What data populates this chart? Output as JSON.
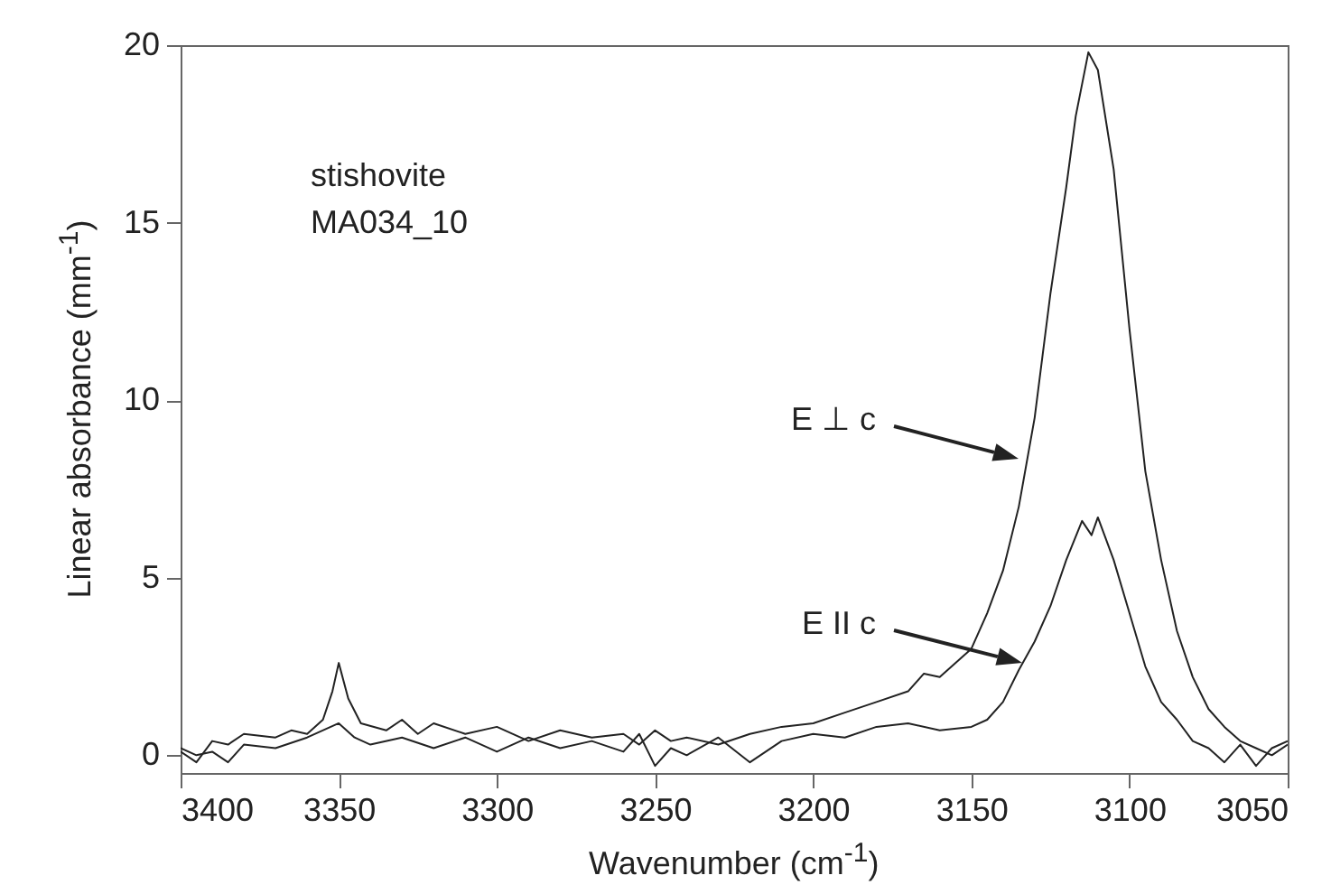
{
  "chart_data": {
    "type": "line",
    "xlabel": "Wavenumber (cm$^{-1}$)",
    "ylabel": "Linear absorbance (mm$^{-1}$)",
    "xlim": [
      3400,
      3050
    ],
    "xticks": [
      3400,
      3350,
      3300,
      3250,
      3200,
      3150,
      3100,
      3050
    ],
    "ylim": [
      -0.5,
      20
    ],
    "yticks": [
      0,
      5,
      10,
      15,
      20
    ],
    "grid": false,
    "legend": false,
    "annotations": [
      "stishovite",
      "MA034_10",
      "E ⊥ c",
      "E II c"
    ],
    "series": [
      {
        "color": "#222222",
        "x": [
          3400,
          3395,
          3390,
          3385,
          3380,
          3370,
          3365,
          3360,
          3355,
          3352,
          3350,
          3347,
          3343,
          3335,
          3330,
          3325,
          3320,
          3310,
          3300,
          3290,
          3280,
          3270,
          3260,
          3255,
          3250,
          3245,
          3240,
          3230,
          3220,
          3210,
          3200,
          3190,
          3180,
          3170,
          3165,
          3160,
          3150,
          3145,
          3140,
          3135,
          3130,
          3125,
          3120,
          3117,
          3113,
          3110,
          3105,
          3100,
          3095,
          3090,
          3085,
          3080,
          3075,
          3070,
          3065,
          3060,
          3055,
          3050
        ],
        "values": [
          0.1,
          -0.2,
          0.4,
          0.3,
          0.6,
          0.5,
          0.7,
          0.6,
          1.0,
          1.8,
          2.6,
          1.6,
          0.9,
          0.7,
          1.0,
          0.6,
          0.9,
          0.6,
          0.8,
          0.4,
          0.7,
          0.5,
          0.6,
          0.3,
          0.7,
          0.4,
          0.5,
          0.3,
          0.6,
          0.8,
          0.9,
          1.2,
          1.5,
          1.8,
          2.3,
          2.2,
          3.0,
          4.0,
          5.2,
          7.0,
          9.5,
          13.0,
          16.0,
          18.0,
          19.8,
          19.3,
          16.5,
          12.0,
          8.0,
          5.5,
          3.5,
          2.2,
          1.3,
          0.8,
          0.4,
          0.2,
          0.0,
          0.3
        ]
      },
      {
        "color": "#222222",
        "x": [
          3400,
          3395,
          3390,
          3385,
          3380,
          3370,
          3360,
          3350,
          3345,
          3340,
          3330,
          3320,
          3310,
          3300,
          3290,
          3280,
          3270,
          3260,
          3255,
          3250,
          3245,
          3240,
          3230,
          3220,
          3210,
          3200,
          3190,
          3180,
          3170,
          3160,
          3150,
          3145,
          3140,
          3135,
          3130,
          3125,
          3120,
          3115,
          3112,
          3110,
          3105,
          3100,
          3095,
          3090,
          3085,
          3080,
          3075,
          3070,
          3065,
          3060,
          3055,
          3050
        ],
        "values": [
          0.2,
          0.0,
          0.1,
          -0.2,
          0.3,
          0.2,
          0.5,
          0.9,
          0.5,
          0.3,
          0.5,
          0.2,
          0.5,
          0.1,
          0.5,
          0.2,
          0.4,
          0.1,
          0.6,
          -0.3,
          0.2,
          0.0,
          0.5,
          -0.2,
          0.4,
          0.6,
          0.5,
          0.8,
          0.9,
          0.7,
          0.8,
          1.0,
          1.5,
          2.4,
          3.2,
          4.2,
          5.5,
          6.6,
          6.2,
          6.7,
          5.5,
          4.0,
          2.5,
          1.5,
          1.0,
          0.4,
          0.2,
          -0.2,
          0.3,
          -0.3,
          0.2,
          0.4
        ]
      }
    ]
  }
}
